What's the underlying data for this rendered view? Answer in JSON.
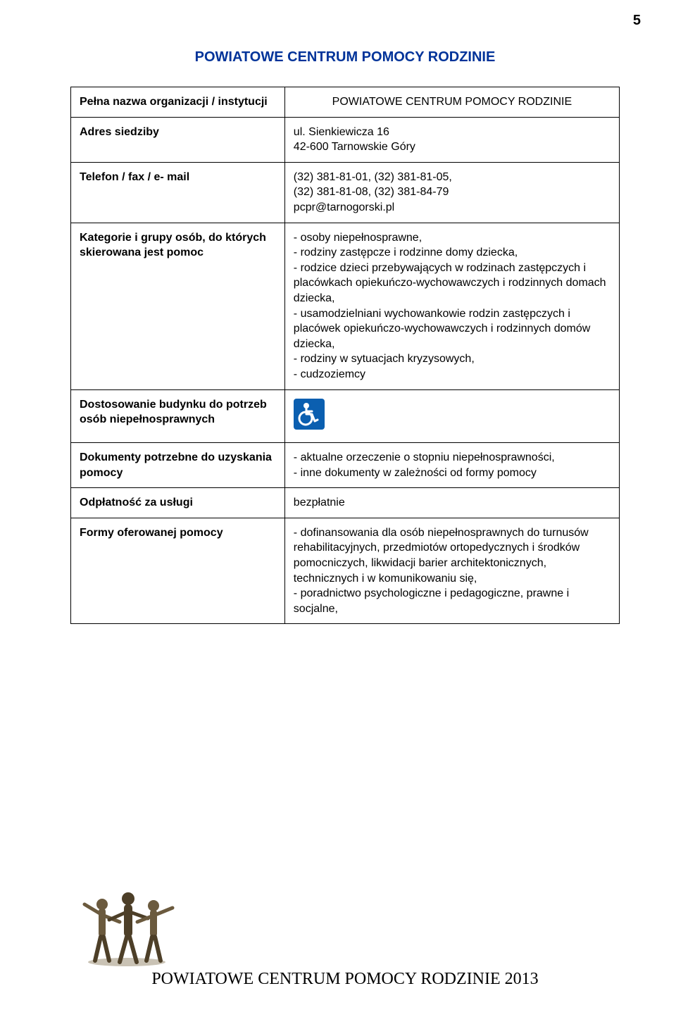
{
  "page_number": "5",
  "title_color": "#003399",
  "title": "POWIATOWE CENTRUM POMOCY RODZINIE",
  "accessibility_icon": {
    "bg": "#0b5fb0",
    "fg": "#ffffff"
  },
  "rows": [
    {
      "label": "Pełna nazwa organizacji / instytucji",
      "value": "POWIATOWE CENTRUM POMOCY RODZINIE",
      "value_is_heading": true
    },
    {
      "label": "Adres siedziby",
      "value": "ul. Sienkiewicza 16\n42-600 Tarnowskie Góry"
    },
    {
      "label": "Telefon / fax / e- mail",
      "value": "(32) 381-81-01, (32) 381-81-05,\n(32) 381-81-08, (32) 381-84-79\npcpr@tarnogorski.pl"
    },
    {
      "label": "Kategorie i grupy osób, do których skierowana jest pomoc",
      "value": "- osoby niepełnosprawne,\n- rodziny zastępcze i rodzinne domy dziecka,\n- rodzice dzieci przebywających w rodzinach zastępczych i placówkach opiekuńczo-wychowawczych i rodzinnych domach dziecka,\n- usamodzielniani wychowankowie rodzin zastępczych i placówek opiekuńczo-wychowawczych i rodzinnych domów dziecka,\n- rodziny w sytuacjach kryzysowych,\n- cudzoziemcy"
    },
    {
      "label": "Dostosowanie budynku do potrzeb osób niepełnosprawnych",
      "value": "",
      "has_icon": true
    },
    {
      "label": "Dokumenty potrzebne do uzyskania pomocy",
      "value": "- aktualne orzeczenie o stopniu niepełnosprawności,\n- inne dokumenty w zależności od formy pomocy"
    },
    {
      "label": "Odpłatność za usługi",
      "value": "bezpłatnie"
    },
    {
      "label": "Formy oferowanej pomocy",
      "value": "- dofinansowania dla osób niepełnosprawnych do turnusów rehabilitacyjnych, przedmiotów ortopedycznych i środków pomocniczych, likwidacji barier architektonicznych, technicznych i w komunikowaniu się,\n- poradnictwo psychologiczne i pedagogiczne, prawne i socjalne,"
    }
  ],
  "footer": "POWIATOWE CENTRUM POMOCY RODZINIE 2013"
}
